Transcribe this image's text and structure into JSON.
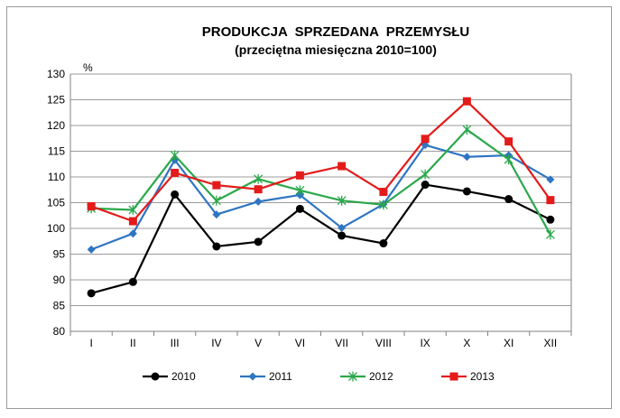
{
  "chart_data": {
    "type": "line",
    "title": "PRODUKCJA  SPRZEDANA  PRZEMYSŁU",
    "subtitle": "(przeciętna miesięczna 2010=100)",
    "ylabel": "%",
    "ylim": [
      80,
      130
    ],
    "yticks": [
      80,
      85,
      90,
      95,
      100,
      105,
      110,
      115,
      120,
      125,
      130
    ],
    "categories": [
      "I",
      "II",
      "III",
      "IV",
      "V",
      "VI",
      "VII",
      "VIII",
      "IX",
      "X",
      "XI",
      "XII"
    ],
    "grid": true,
    "legend_position": "bottom",
    "series": [
      {
        "name": "2010",
        "color": "#000000",
        "marker": "circle",
        "values": [
          87.4,
          89.6,
          106.6,
          96.5,
          97.4,
          103.8,
          98.6,
          97.1,
          108.5,
          107.2,
          105.7,
          101.7
        ]
      },
      {
        "name": "2011",
        "color": "#2e75c2",
        "marker": "diamond",
        "values": [
          95.9,
          99.0,
          113.3,
          102.7,
          105.2,
          106.5,
          100.1,
          104.7,
          116.2,
          113.9,
          114.2,
          109.5
        ]
      },
      {
        "name": "2012",
        "color": "#2aa84a",
        "marker": "star",
        "values": [
          103.9,
          103.6,
          114.2,
          105.4,
          109.6,
          107.4,
          105.4,
          104.6,
          110.5,
          119.2,
          113.4,
          98.8
        ]
      },
      {
        "name": "2013",
        "color": "#e31b1b",
        "marker": "square",
        "values": [
          104.3,
          101.4,
          110.8,
          108.4,
          107.6,
          110.3,
          112.1,
          107.1,
          117.4,
          124.7,
          116.9,
          105.5
        ]
      }
    ]
  }
}
